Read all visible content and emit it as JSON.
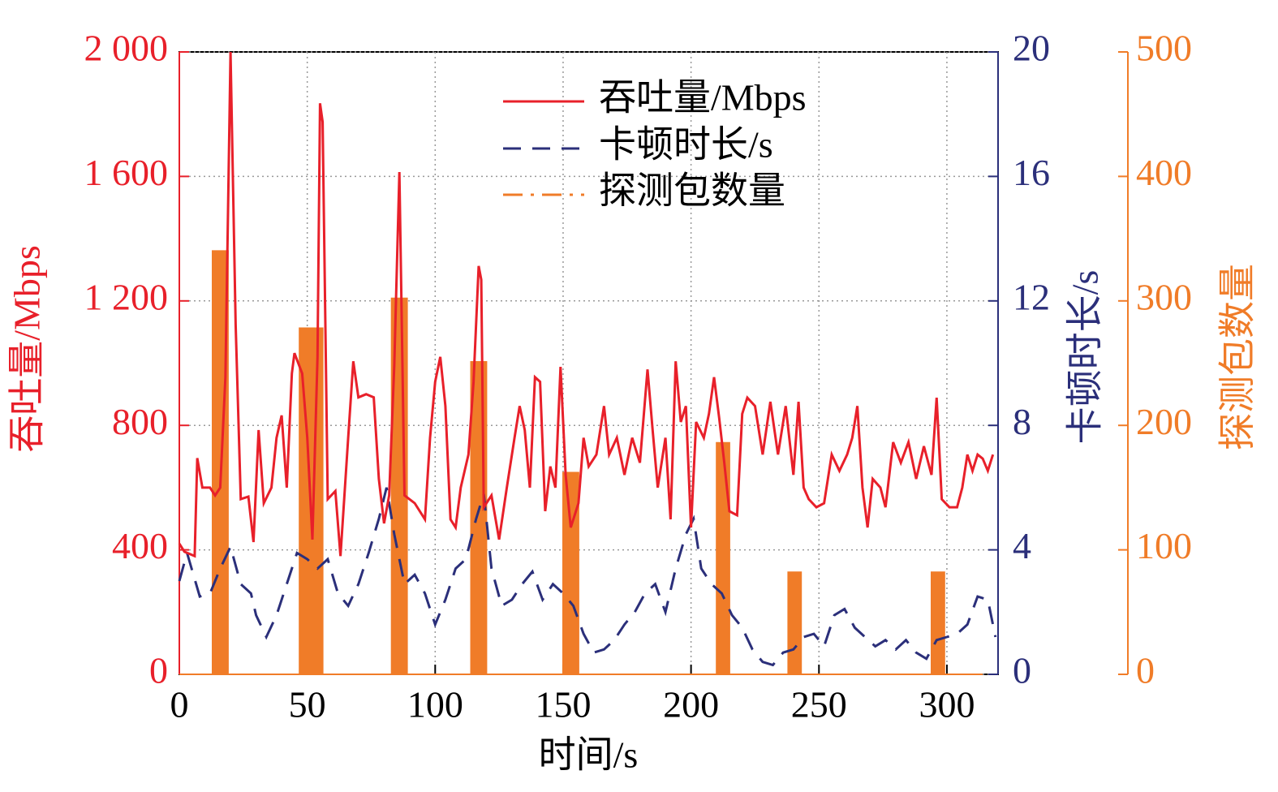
{
  "chart_data": {
    "type": "line",
    "xlabel": "时间/s",
    "ylabel": "吞吐量/Mbps",
    "y2label": "卡顿时长/s",
    "y3label": "探测包数量",
    "xlim": [
      0,
      320
    ],
    "xticks": [
      0,
      50,
      100,
      150,
      200,
      250,
      300
    ],
    "ylim": [
      0,
      2000
    ],
    "yticks": [
      0,
      400,
      800,
      {
        "value": 1200,
        "label": "1 200"
      },
      {
        "value": 1600,
        "label": "1 600"
      },
      {
        "value": 2000,
        "label": "2 000"
      }
    ],
    "y2lim": [
      0,
      20
    ],
    "y2ticks": [
      0,
      4,
      8,
      12,
      16,
      20
    ],
    "y3lim": [
      0,
      500
    ],
    "y3ticks": [
      0,
      100,
      200,
      300,
      400,
      500
    ],
    "grid": true,
    "legend": "top",
    "series": [
      {
        "name": "吞吐量/Mbps",
        "color": "#e8202a",
        "axis": "y",
        "style": "solid",
        "x": [
          0,
          2,
          6,
          7,
          9,
          12,
          14,
          16,
          18,
          20,
          22,
          24,
          27,
          29,
          31,
          33,
          36,
          38,
          40,
          42,
          44,
          45,
          48,
          50,
          52,
          54,
          55,
          56,
          58,
          61,
          63,
          66,
          68,
          70,
          73,
          76,
          78,
          80,
          82,
          84,
          86,
          88,
          92,
          96,
          98,
          100,
          102,
          104,
          106,
          108,
          110,
          113,
          115,
          117,
          118,
          119,
          122,
          125,
          128,
          131,
          133,
          135,
          137,
          139,
          141,
          143,
          145,
          147,
          149,
          151,
          153,
          156,
          158,
          160,
          163,
          166,
          168,
          171,
          174,
          177,
          180,
          183,
          185,
          187,
          190,
          192,
          194,
          196,
          198,
          200,
          202,
          205,
          207,
          209,
          211,
          213,
          215,
          218,
          220,
          222,
          225,
          228,
          231,
          234,
          237,
          240,
          242,
          244,
          246,
          249,
          252,
          255,
          258,
          261,
          263,
          265,
          267,
          269,
          271,
          274,
          276,
          279,
          282,
          285,
          288,
          291,
          294,
          296,
          298,
          301,
          304,
          306,
          308,
          310,
          312,
          314,
          316,
          318
        ],
        "values": [
          420,
          394,
          380,
          695,
          600,
          600,
          575,
          600,
          955,
          2000,
          1125,
          563,
          571,
          425,
          785,
          550,
          600,
          760,
          832,
          600,
          967,
          1032,
          967,
          760,
          433,
          1020,
          1835,
          1775,
          563,
          589,
          380,
          760,
          1006,
          890,
          900,
          890,
          628,
          485,
          575,
          993,
          1614,
          575,
          550,
          498,
          760,
          940,
          1020,
          862,
          498,
          472,
          600,
          706,
          940,
          1312,
          1268,
          537,
          575,
          433,
          600,
          760,
          862,
          785,
          600,
          955,
          940,
          524,
          668,
          600,
          988,
          641,
          472,
          550,
          760,
          668,
          706,
          862,
          706,
          760,
          641,
          760,
          680,
          980,
          785,
          600,
          760,
          498,
          1006,
          811,
          862,
          472,
          811,
          760,
          837,
          955,
          824,
          680,
          524,
          511,
          837,
          889,
          862,
          706,
          876,
          706,
          862,
          641,
          876,
          600,
          563,
          537,
          550,
          706,
          654,
          706,
          760,
          862,
          600,
          472,
          628,
          600,
          537,
          746,
          680,
          746,
          628,
          733,
          641,
          889,
          563,
          537,
          537,
          600,
          706,
          654,
          706,
          693,
          654,
          706
        ]
      },
      {
        "name": "卡顿时长/s",
        "color": "#2b2f7a",
        "axis": "y2",
        "style": "dashed",
        "x": [
          0,
          3,
          8,
          12,
          16,
          20,
          24,
          28,
          30,
          34,
          38,
          42,
          46,
          50,
          54,
          58,
          62,
          66,
          70,
          74,
          78,
          81,
          84,
          88,
          92,
          96,
          100,
          104,
          108,
          112,
          116,
          119,
          122,
          126,
          130,
          134,
          138,
          142,
          146,
          150,
          154,
          158,
          162,
          166,
          170,
          174,
          178,
          182,
          186,
          190,
          194,
          198,
          201,
          204,
          208,
          212,
          216,
          220,
          224,
          228,
          232,
          236,
          240,
          244,
          248,
          252,
          256,
          260,
          264,
          268,
          272,
          276,
          280,
          284,
          288,
          292,
          296,
          300,
          304,
          308,
          312,
          316,
          319
        ],
        "values": [
          3.0,
          3.9,
          2.5,
          2.6,
          3.4,
          4.1,
          2.9,
          2.6,
          1.9,
          1.2,
          1.9,
          2.9,
          3.9,
          3.7,
          3.4,
          3.7,
          2.6,
          2.2,
          2.9,
          3.9,
          5.0,
          6.0,
          4.5,
          2.9,
          3.2,
          2.6,
          1.6,
          2.4,
          3.4,
          3.7,
          5.0,
          5.8,
          3.4,
          2.2,
          2.4,
          2.9,
          3.3,
          2.4,
          2.9,
          2.6,
          2.2,
          1.3,
          0.7,
          0.8,
          1.1,
          1.6,
          2.0,
          2.6,
          2.9,
          2.0,
          3.4,
          4.5,
          5.0,
          3.4,
          2.9,
          2.6,
          1.9,
          1.5,
          0.8,
          0.4,
          0.3,
          0.7,
          0.8,
          1.2,
          1.3,
          0.9,
          1.9,
          2.1,
          1.5,
          1.2,
          0.9,
          1.1,
          0.8,
          1.1,
          0.7,
          0.5,
          1.1,
          1.2,
          1.3,
          1.6,
          2.5,
          2.4,
          1.2
        ]
      },
      {
        "name": "探测包数量",
        "color": "#f07c28",
        "axis": "y3",
        "style": "dashdot",
        "x": [
          0,
          13,
          13,
          19,
          19,
          47,
          47,
          56,
          56,
          83,
          83,
          89,
          89,
          114,
          114,
          120,
          120,
          150,
          150,
          156,
          156,
          210,
          210,
          215,
          215,
          238,
          238,
          243,
          243,
          294,
          294,
          299,
          299,
          314
        ],
        "values": [
          0,
          0,
          340,
          340,
          0,
          0,
          278,
          278,
          0,
          0,
          302,
          302,
          0,
          0,
          251,
          251,
          0,
          0,
          162,
          162,
          0,
          0,
          186,
          186,
          0,
          0,
          82,
          82,
          0,
          0,
          82,
          82,
          0,
          0
        ]
      }
    ]
  }
}
